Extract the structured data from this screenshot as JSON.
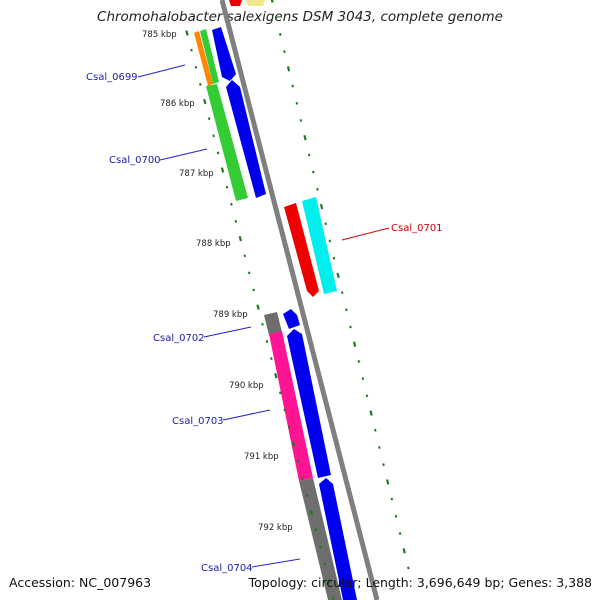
{
  "title": "Chromohalobacter salexigens DSM 3043, complete genome",
  "accession": "Accession: NC_007963",
  "topology": "Topology: circular; Length: 3,696,649 bp; Genes: 3,388",
  "kbp_ticks": [
    "785 kbp",
    "786 kbp",
    "787 kbp",
    "788 kbp",
    "789 kbp",
    "790 kbp",
    "791 kbp",
    "792 kbp"
  ],
  "gene_labels": [
    {
      "text": "Csal_0699",
      "color": "#1a1ab0"
    },
    {
      "text": "Csal_0700",
      "color": "#1a1ab0"
    },
    {
      "text": "Csal_0701",
      "color": "#cc0000"
    },
    {
      "text": "Csal_0702",
      "color": "#1a1ab0"
    },
    {
      "text": "Csal_0703",
      "color": "#1a1ab0"
    },
    {
      "text": "Csal_0704",
      "color": "#1a1ab0"
    }
  ],
  "colors": {
    "backbone": "#888888",
    "tick_green": "#1e7a1e",
    "cds_blue": "#0000ee",
    "orange": "#ff8800",
    "green": "#33cc33",
    "red": "#ee0000",
    "cyan": "#00eeee",
    "magenta": "#ff1493",
    "gray": "#6e6e6e",
    "yellow": "#f0e68c"
  }
}
